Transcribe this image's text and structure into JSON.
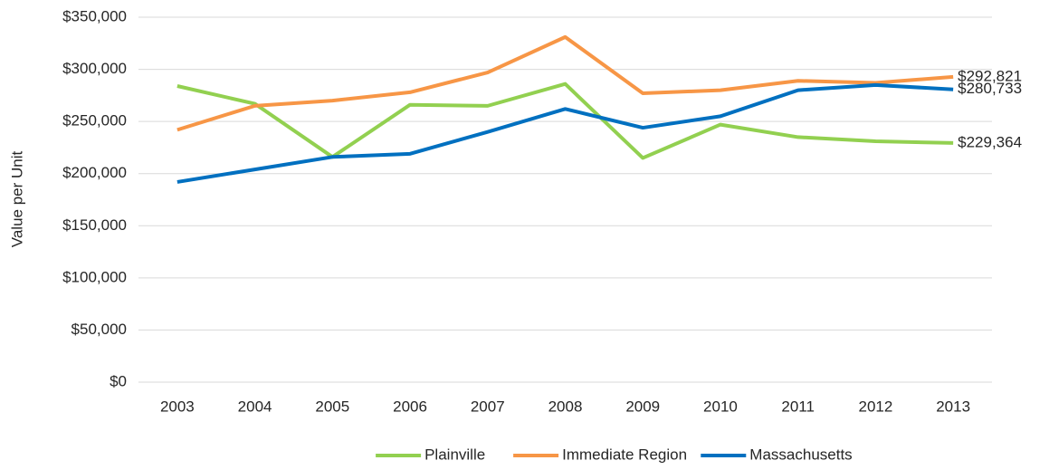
{
  "chart_data": {
    "type": "line",
    "y_label": "Value per Unit",
    "categories": [
      "2003",
      "2004",
      "2005",
      "2006",
      "2007",
      "2008",
      "2009",
      "2010",
      "2011",
      "2012",
      "2013"
    ],
    "series": [
      {
        "name": "Plainville",
        "color": "#92d050",
        "values": [
          284000,
          267000,
          216000,
          266000,
          265000,
          286000,
          215000,
          247000,
          235000,
          231000,
          229364
        ],
        "value_labels": [
          null,
          null,
          null,
          null,
          null,
          null,
          null,
          null,
          null,
          null,
          "$229,364"
        ]
      },
      {
        "name": "Immediate Region",
        "color": "#f79646",
        "values": [
          242000,
          265000,
          270000,
          278000,
          297000,
          331000,
          277000,
          280000,
          289000,
          287000,
          292821
        ],
        "value_labels": [
          null,
          null,
          null,
          null,
          null,
          null,
          null,
          null,
          null,
          null,
          "$292,821"
        ]
      },
      {
        "name": "Massachusetts",
        "color": "#0070c0",
        "values": [
          192000,
          204000,
          216000,
          219000,
          240000,
          262000,
          244000,
          255000,
          280000,
          285000,
          280733
        ],
        "value_labels": [
          null,
          null,
          null,
          null,
          null,
          null,
          null,
          null,
          null,
          null,
          "$280,733"
        ]
      }
    ],
    "ylim": [
      0,
      350000
    ],
    "yticks": [
      {
        "value": 0,
        "label": "$0"
      },
      {
        "value": 50000,
        "label": "$50,000"
      },
      {
        "value": 100000,
        "label": "$100,000"
      },
      {
        "value": 150000,
        "label": "$150,000"
      },
      {
        "value": 200000,
        "label": "$200,000"
      },
      {
        "value": 250000,
        "label": "$250,000"
      },
      {
        "value": 300000,
        "label": "$300,000"
      },
      {
        "value": 350000,
        "label": "$350,000"
      }
    ],
    "grid": true,
    "legend": "bottom"
  }
}
